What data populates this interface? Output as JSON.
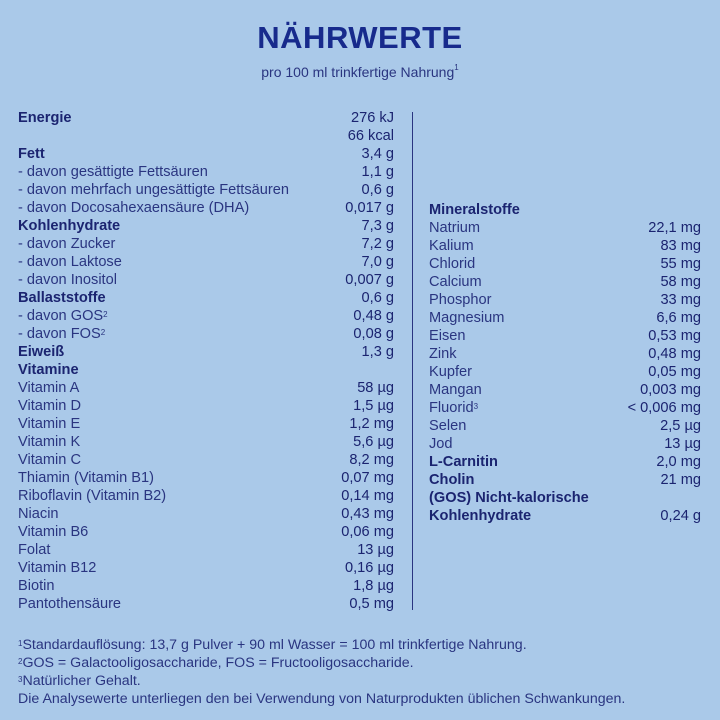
{
  "colors": {
    "background": "#aac9e9",
    "text": "#1b2470",
    "title": "#172a8c"
  },
  "header": {
    "title": "NÄHRWERTE",
    "subtitle": "pro 100 ml trinkfertige Nahrung",
    "subtitle_sup": "1"
  },
  "left_rows": [
    {
      "label": "Energie",
      "value": "276 kJ",
      "bold": true
    },
    {
      "label": "",
      "value": "66 kcal",
      "bold": true
    },
    {
      "label": "Fett",
      "value": "3,4 g",
      "bold": true
    },
    {
      "label": "- davon gesättigte Fettsäuren",
      "value": "1,1 g"
    },
    {
      "label": "- davon mehrfach ungesättigte Fettsäuren",
      "value": "0,6 g"
    },
    {
      "label": "- davon Docosahexaensäure (DHA)",
      "value": "0,017 g"
    },
    {
      "label": "Kohlenhydrate",
      "value": "7,3 g",
      "bold": true
    },
    {
      "label": "- davon Zucker",
      "value": "7,2 g"
    },
    {
      "label": "- davon Laktose",
      "value": "7,0 g"
    },
    {
      "label": "- davon Inositol",
      "value": "0,007 g"
    },
    {
      "label": "Ballaststoffe",
      "value": "0,6 g",
      "bold": true
    },
    {
      "label": "- davon GOS",
      "sup": "2",
      "value": "0,48 g"
    },
    {
      "label": "- davon FOS",
      "sup": "2",
      "value": "0,08 g"
    },
    {
      "label": "Eiweiß",
      "value": "1,3 g",
      "bold": true
    },
    {
      "label": "Vitamine",
      "value": "",
      "bold": true
    },
    {
      "label": "Vitamin A",
      "value": "58 µg"
    },
    {
      "label": "Vitamin D",
      "value": "1,5 µg"
    },
    {
      "label": "Vitamin E",
      "value": "1,2 mg"
    },
    {
      "label": "Vitamin K",
      "value": "5,6 µg"
    },
    {
      "label": "Vitamin C",
      "value": "8,2 mg"
    },
    {
      "label": "Thiamin (Vitamin B1)",
      "value": "0,07 mg"
    },
    {
      "label": "Riboflavin (Vitamin B2)",
      "value": "0,14 mg"
    },
    {
      "label": "Niacin",
      "value": "0,43 mg"
    },
    {
      "label": "Vitamin B6",
      "value": "0,06 mg"
    },
    {
      "label": "Folat",
      "value": "13 µg"
    },
    {
      "label": "Vitamin B12",
      "value": "0,16 µg"
    },
    {
      "label": "Biotin",
      "value": "1,8 µg"
    },
    {
      "label": "Pantothensäure",
      "value": "0,5 mg"
    }
  ],
  "right_rows": [
    {
      "label": "Mineralstoffe",
      "value": "",
      "bold": true
    },
    {
      "label": "Natrium",
      "value": "22,1 mg"
    },
    {
      "label": "Kalium",
      "value": "83 mg"
    },
    {
      "label": "Chlorid",
      "value": "55 mg"
    },
    {
      "label": "Calcium",
      "value": "58 mg"
    },
    {
      "label": "Phosphor",
      "value": "33 mg"
    },
    {
      "label": "Magnesium",
      "value": "6,6 mg"
    },
    {
      "label": "Eisen",
      "value": "0,53 mg"
    },
    {
      "label": "Zink",
      "value": "0,48 mg"
    },
    {
      "label": "Kupfer",
      "value": "0,05 mg"
    },
    {
      "label": "Mangan",
      "value": "0,003 mg"
    },
    {
      "label": "Fluorid",
      "sup": "3",
      "value": "< 0,006 mg"
    },
    {
      "label": "Selen",
      "value": "2,5 µg"
    },
    {
      "label": "Jod",
      "value": "13 µg"
    },
    {
      "label": "L-Carnitin",
      "value": "2,0 mg",
      "bold": true
    },
    {
      "label": "Cholin",
      "value": "21 mg",
      "bold": true
    },
    {
      "label": "(GOS) Nicht-kalorische",
      "value": "",
      "bold": true
    },
    {
      "label": "Kohlenhydrate",
      "value": "0,24 g",
      "bold": true
    }
  ],
  "footnotes": [
    {
      "sup": "1",
      "text": "Standardauflösung: 13,7 g Pulver + 90 ml Wasser = 100 ml trinkfertige Nahrung."
    },
    {
      "sup": "2",
      "text": "GOS = Galactooligosaccharide, FOS = Fructooligosaccharide."
    },
    {
      "sup": "3",
      "text": "Natürlicher Gehalt."
    },
    {
      "sup": "",
      "text": "Die Analysewerte unterliegen den bei Verwendung von Naturprodukten üblichen Schwankungen."
    }
  ]
}
